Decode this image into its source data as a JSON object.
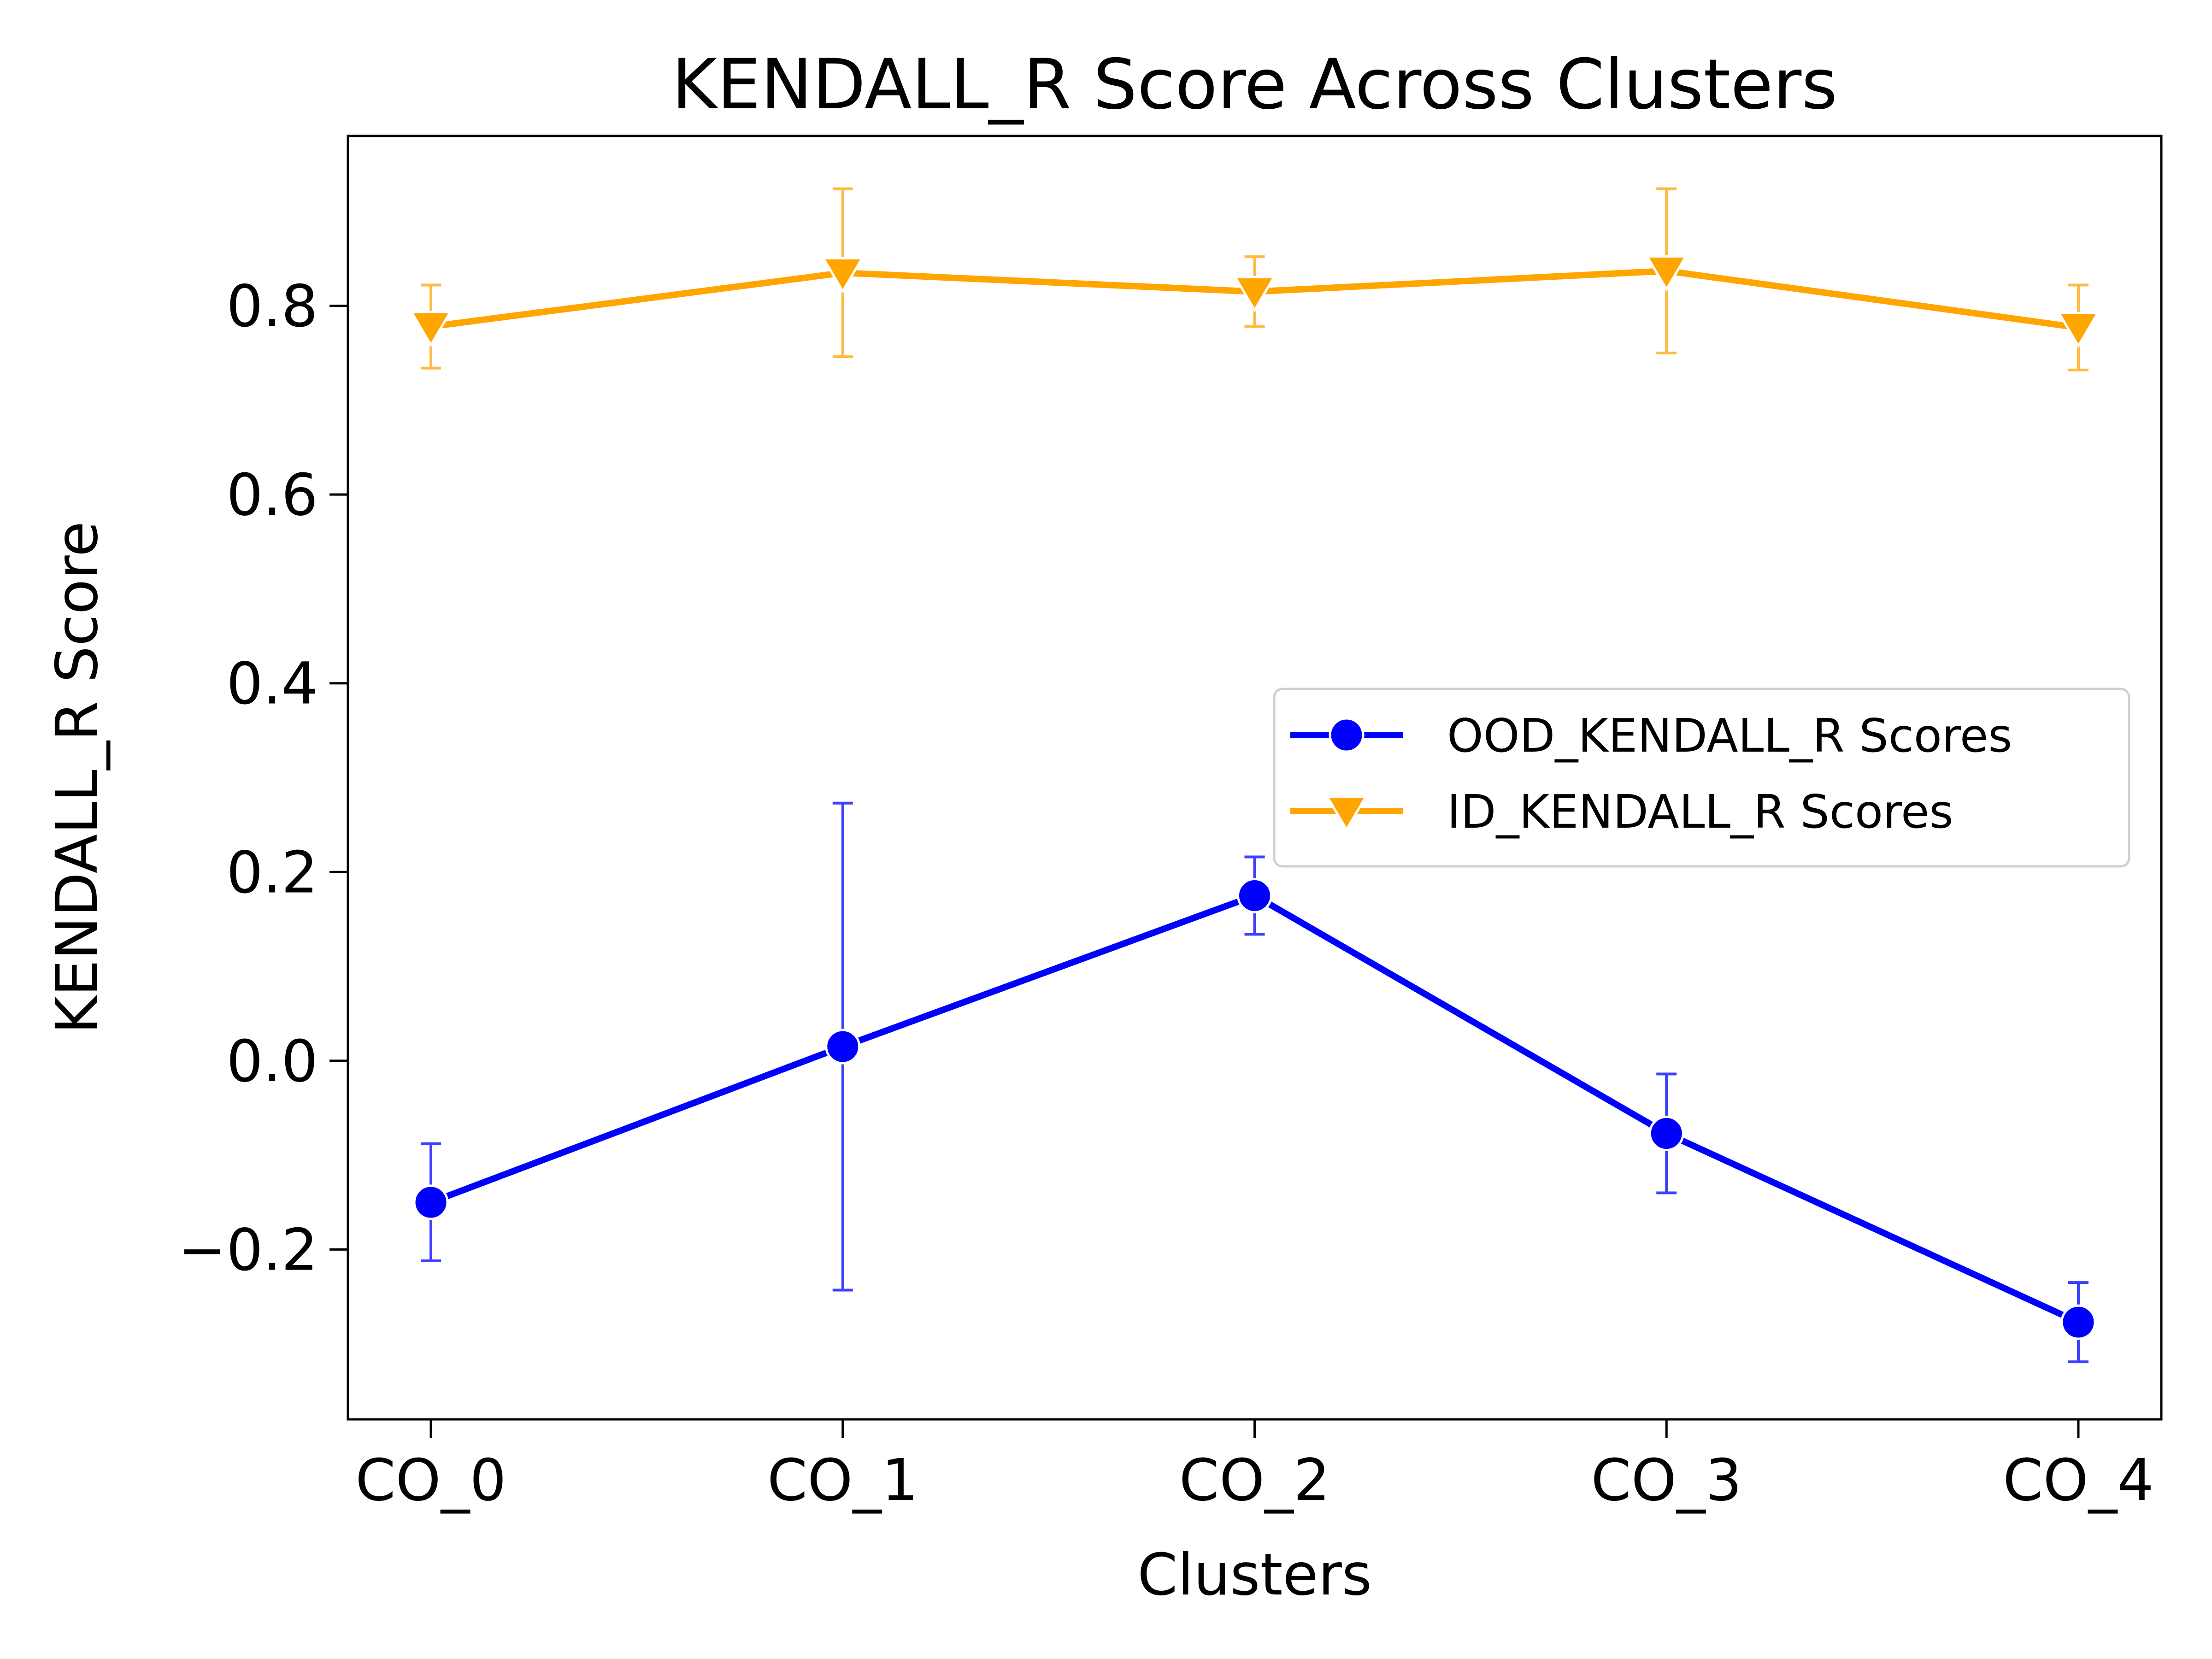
{
  "chart_data": {
    "type": "line",
    "title": "KENDALL_R Score Across Clusters",
    "xlabel": "Clusters",
    "ylabel": "KENDALL_R Score",
    "categories": [
      "CO_0",
      "CO_1",
      "CO_2",
      "CO_3",
      "CO_4"
    ],
    "ylim": [
      -0.38,
      0.98
    ],
    "yticks": [
      -0.2,
      0.0,
      0.2,
      0.4,
      0.6,
      0.8
    ],
    "ytick_labels": [
      "−0.2",
      "0.0",
      "0.2",
      "0.4",
      "0.6",
      "0.8"
    ],
    "grid": false,
    "legend_position": "center-right",
    "series": [
      {
        "name": "OOD_KENDALL_R Scores",
        "color": "#0000ff",
        "marker": "circle",
        "values": [
          -0.15,
          0.015,
          0.175,
          -0.077,
          -0.277
        ],
        "errors": [
          0.062,
          0.258,
          0.041,
          0.063,
          0.042
        ]
      },
      {
        "name": "ID_KENDALL_R Scores",
        "color": "#ffa500",
        "marker": "triangle-down",
        "values": [
          0.778,
          0.835,
          0.815,
          0.837,
          0.777
        ],
        "errors": [
          0.044,
          0.089,
          0.037,
          0.087,
          0.045
        ]
      }
    ]
  }
}
